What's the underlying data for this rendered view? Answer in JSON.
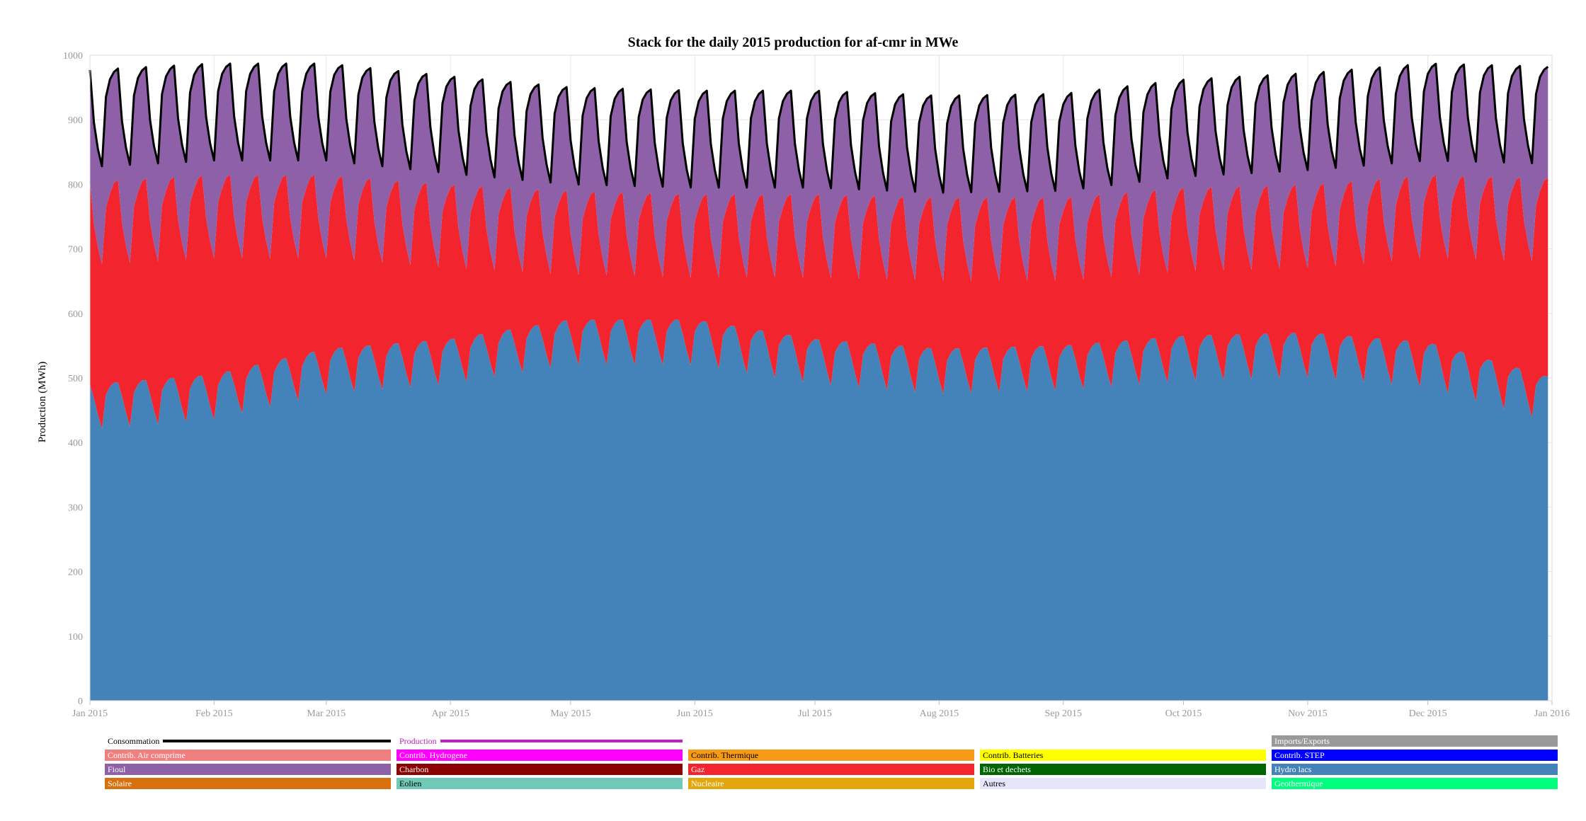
{
  "chart_data": {
    "type": "area",
    "title": "Stack for the daily 2015 production for af-cmr in MWe",
    "xlabel": "",
    "ylabel": "Production (MWh)",
    "ylim": [
      0,
      1000
    ],
    "yticks": [
      0,
      100,
      200,
      300,
      400,
      500,
      600,
      700,
      800,
      900,
      1000
    ],
    "x_range": [
      "2015-01-01",
      "2016-01-01"
    ],
    "x_tick_labels": [
      "Jan 2015",
      "Feb 2015",
      "Mar 2015",
      "Apr 2015",
      "May 2015",
      "Jun 2015",
      "Jul 2015",
      "Aug 2015",
      "Sep 2015",
      "Oct 2015",
      "Nov 2015",
      "Dec 2015",
      "Jan 2016"
    ],
    "grid": true,
    "legend_position": "bottom",
    "stack_order": [
      "Hydro lacs",
      "Gaz",
      "Fioul"
    ],
    "line_series": [
      "Consommation"
    ],
    "x_start": "2015-01-01",
    "days": 365,
    "weekly_pattern": {
      "Hydro lacs": [
        0,
        -22,
        -48,
        -70,
        -18,
        -6,
        0
      ],
      "Gaz": [
        315,
        270,
        260,
        255,
        290,
        300,
        310
      ],
      "Fioul": [
        170,
        155,
        150,
        150,
        170,
        175,
        170
      ]
    },
    "monthly_levels": {
      "month_start_dates": [
        "2015-01-01",
        "2015-02-01",
        "2015-03-01",
        "2015-04-01",
        "2015-05-01",
        "2015-06-01",
        "2015-07-01",
        "2015-08-01",
        "2015-09-01",
        "2015-10-01",
        "2015-11-01",
        "2015-12-01",
        "2016-01-01"
      ],
      "Hydro lacs": [
        490,
        505,
        545,
        560,
        590,
        590,
        560,
        545,
        550,
        565,
        570,
        555,
        500
      ],
      "Gaz_adjust": [
        0,
        -5,
        -45,
        -75,
        -115,
        -120,
        -90,
        -80,
        -85,
        -85,
        -85,
        -55,
        -5
      ],
      "Fioul_adjust": [
        0,
        0,
        0,
        -5,
        -12,
        -12,
        -12,
        -15,
        -12,
        -5,
        0,
        0,
        0
      ]
    },
    "series": [
      {
        "name": "Consommation",
        "color": "#000000",
        "kind": "line"
      },
      {
        "name": "Production",
        "color": "#c020c0",
        "kind": "line"
      },
      {
        "name": "Imports/Exports",
        "color": "#999999",
        "kind": "area"
      },
      {
        "name": "Contrib. Air comprime",
        "color": "#f08080",
        "kind": "area"
      },
      {
        "name": "Contrib. Hydrogene",
        "color": "#ff00ff",
        "kind": "area"
      },
      {
        "name": "Contrib. Thermique",
        "color": "#f79a15",
        "kind": "area"
      },
      {
        "name": "Contrib. Batteries",
        "color": "#ffff00",
        "kind": "area"
      },
      {
        "name": "Contrib. STEP",
        "color": "#0000ff",
        "kind": "area"
      },
      {
        "name": "Fioul",
        "color": "#8e60a8",
        "kind": "area"
      },
      {
        "name": "Charbon",
        "color": "#8b0000",
        "kind": "area"
      },
      {
        "name": "Gaz",
        "color": "#f2252f",
        "kind": "area"
      },
      {
        "name": "Bio et dechets",
        "color": "#006400",
        "kind": "area"
      },
      {
        "name": "Hydro lacs",
        "color": "#4383ba",
        "kind": "area"
      },
      {
        "name": "Solaire",
        "color": "#d9700f",
        "kind": "area"
      },
      {
        "name": "Eolien",
        "color": "#71c9b7",
        "kind": "area"
      },
      {
        "name": "Nucleaire",
        "color": "#e3a60c",
        "kind": "area"
      },
      {
        "name": "Autres",
        "color": "#e6e6fa",
        "kind": "area"
      },
      {
        "name": "Geothermique",
        "color": "#00ff7f",
        "kind": "area"
      }
    ]
  },
  "legend": [
    {
      "name": "Consommation",
      "kind": "line",
      "color": "#000000",
      "text_color": "#000000"
    },
    {
      "name": "Production",
      "kind": "line",
      "color": "#c020c0",
      "text_color": "#c020c0"
    },
    {
      "name": "Imports/Exports",
      "kind": "box",
      "color": "#999999",
      "text_color": "#ffffff"
    },
    {
      "name": "Contrib. Air comprime",
      "kind": "box",
      "color": "#f08080",
      "text_color": "#ffffff"
    },
    {
      "name": "Contrib. Hydrogene",
      "kind": "box",
      "color": "#ff00ff",
      "text_color": "#ffffff"
    },
    {
      "name": "Contrib. Thermique",
      "kind": "box",
      "color": "#f79a15",
      "text_color": "#000000"
    },
    {
      "name": "Contrib. Batteries",
      "kind": "box",
      "color": "#ffff00",
      "text_color": "#000000"
    },
    {
      "name": "Contrib. STEP",
      "kind": "box",
      "color": "#0000ff",
      "text_color": "#ffffff"
    },
    {
      "name": "Fioul",
      "kind": "box",
      "color": "#8e60a8",
      "text_color": "#ffffff"
    },
    {
      "name": "Charbon",
      "kind": "box",
      "color": "#8b0000",
      "text_color": "#ffffff"
    },
    {
      "name": "Gaz",
      "kind": "box",
      "color": "#f2252f",
      "text_color": "#ffffff"
    },
    {
      "name": "Bio et dechets",
      "kind": "box",
      "color": "#006400",
      "text_color": "#ffffff"
    },
    {
      "name": "Hydro lacs",
      "kind": "box",
      "color": "#4383ba",
      "text_color": "#ffffff"
    },
    {
      "name": "Solaire",
      "kind": "box",
      "color": "#d9700f",
      "text_color": "#ffffff"
    },
    {
      "name": "Eolien",
      "kind": "box",
      "color": "#71c9b7",
      "text_color": "#000000"
    },
    {
      "name": "Nucleaire",
      "kind": "box",
      "color": "#e3a60c",
      "text_color": "#ffffff"
    },
    {
      "name": "Autres",
      "kind": "box",
      "color": "#e6e6fa",
      "text_color": "#000000"
    },
    {
      "name": "Geothermique",
      "kind": "box",
      "color": "#00ff7f",
      "text_color": "#ffffff"
    }
  ]
}
